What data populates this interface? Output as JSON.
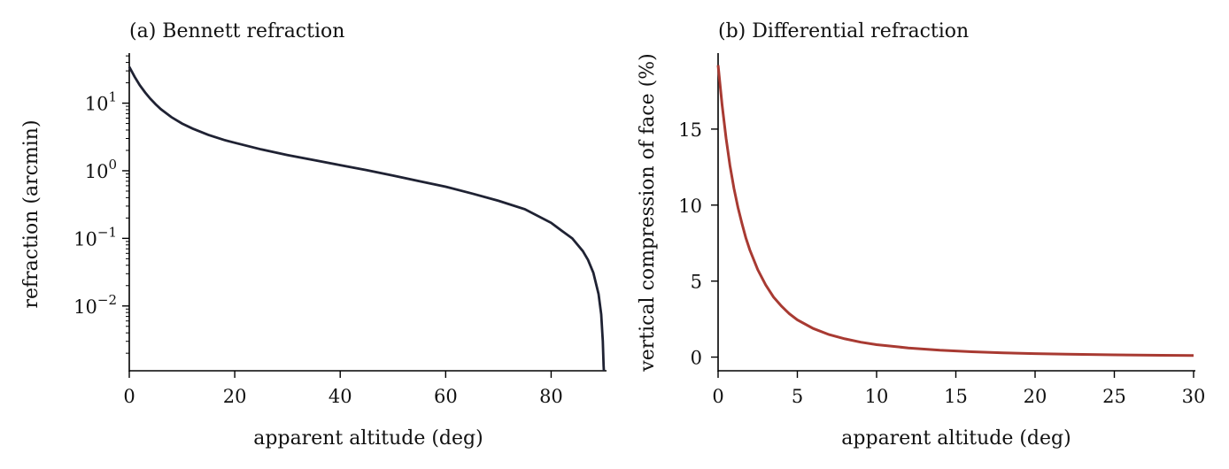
{
  "chart_data": [
    {
      "type": "line",
      "title": "(a) Bennett refraction",
      "xlabel": "apparent altitude (deg)",
      "ylabel": "refraction (arcmin)",
      "xlim": [
        0,
        90
      ],
      "yscale": "log",
      "ylim": [
        0.0011,
        55
      ],
      "xticks": [
        "0",
        "20",
        "40",
        "60",
        "80"
      ],
      "xtick_values": [
        0,
        20,
        40,
        60,
        80
      ],
      "yticks": [
        {
          "base": "10",
          "exp": "1",
          "value": 10
        },
        {
          "base": "10",
          "exp": "0",
          "value": 1
        },
        {
          "base": "10",
          "exp": "−1",
          "value": 0.1
        },
        {
          "base": "10",
          "exp": "−2",
          "value": 0.01
        }
      ],
      "grid": false,
      "color": "#1f2233",
      "series": [
        {
          "x": [
            0,
            1,
            2,
            3,
            4,
            5,
            6,
            8,
            10,
            12,
            15,
            18,
            20,
            25,
            30,
            35,
            40,
            45,
            50,
            55,
            60,
            65,
            70,
            75,
            80,
            82,
            84,
            86,
            87,
            88,
            89,
            89.5,
            89.8,
            89.95,
            90
          ],
          "y": [
            34.5,
            24.6,
            18.4,
            14.4,
            11.6,
            9.6,
            8.15,
            6.2,
            5.0,
            4.2,
            3.4,
            2.85,
            2.6,
            2.07,
            1.71,
            1.44,
            1.21,
            1.02,
            0.85,
            0.7,
            0.58,
            0.46,
            0.36,
            0.27,
            0.17,
            0.13,
            0.1,
            0.065,
            0.048,
            0.031,
            0.015,
            0.0075,
            0.003,
            0.0013,
            0.0011
          ]
        }
      ]
    },
    {
      "type": "line",
      "title": "(b) Differential refraction",
      "xlabel": "apparent altitude (deg)",
      "ylabel": "vertical compression of face (%)",
      "xlim": [
        0,
        30
      ],
      "ylim": [
        -0.9,
        20.0
      ],
      "xticks": [
        "0",
        "5",
        "10",
        "15",
        "20",
        "25",
        "30"
      ],
      "xtick_values": [
        0,
        5,
        10,
        15,
        20,
        25,
        30
      ],
      "yticks": [
        "0",
        "5",
        "10",
        "15"
      ],
      "ytick_values": [
        0,
        5,
        10,
        15
      ],
      "grid": false,
      "color": "#a83a32",
      "series": [
        {
          "x": [
            0,
            0.25,
            0.5,
            0.75,
            1,
            1.25,
            1.5,
            1.75,
            2,
            2.5,
            3,
            3.5,
            4,
            4.5,
            5,
            6,
            7,
            8,
            9,
            10,
            12,
            14,
            16,
            18,
            20,
            22,
            25,
            28,
            30
          ],
          "y": [
            19.2,
            16.6,
            14.4,
            12.6,
            11.1,
            9.85,
            8.8,
            7.85,
            7.05,
            5.75,
            4.75,
            3.95,
            3.35,
            2.85,
            2.45,
            1.88,
            1.48,
            1.2,
            0.98,
            0.82,
            0.6,
            0.45,
            0.35,
            0.28,
            0.23,
            0.19,
            0.15,
            0.12,
            0.1
          ]
        }
      ]
    }
  ]
}
